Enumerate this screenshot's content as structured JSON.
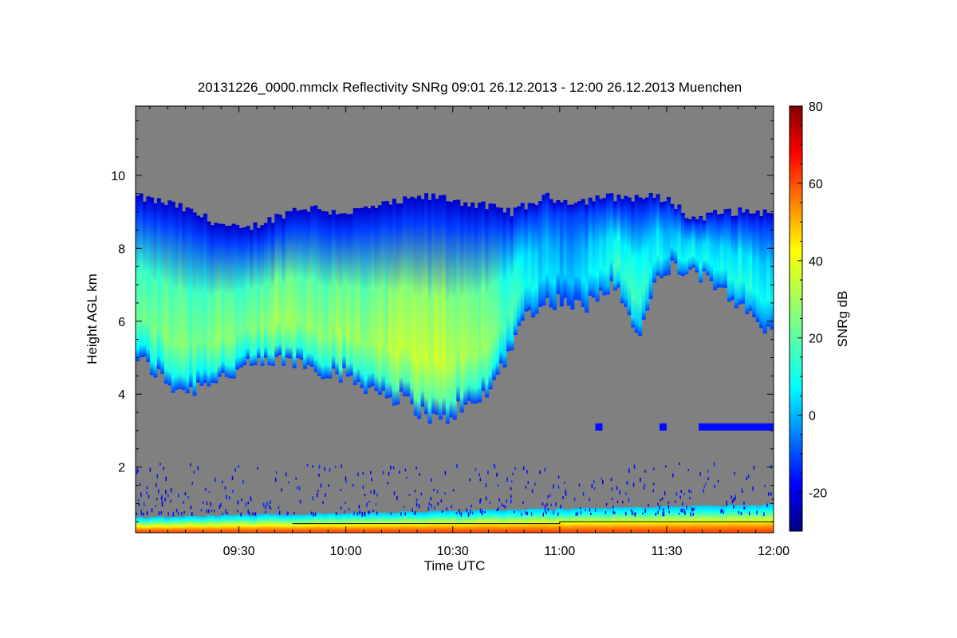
{
  "chart_data": {
    "type": "heatmap",
    "title": "20131226_0000.mmclx Reflectivity SNRg   09:01 26.12.2013 - 12:00 26.12.2013 Muenchen",
    "xlabel": "Time UTC",
    "ylabel": "Height AGL km",
    "x_ticks": [
      "09:30",
      "10:00",
      "10:30",
      "11:00",
      "11:30",
      "12:00"
    ],
    "x_tick_minutes": [
      570,
      600,
      630,
      660,
      690,
      720
    ],
    "xlim_minutes": [
      541,
      720
    ],
    "y_ticks": [
      2,
      4,
      6,
      8,
      10
    ],
    "ylim": [
      0.2,
      11.9
    ],
    "colorbar": {
      "label": "SNRg dB",
      "ticks": [
        -20,
        0,
        20,
        40,
        60,
        80
      ],
      "range": [
        -30,
        80
      ],
      "colormap": "jet"
    },
    "background_color": "#808080",
    "cloud_layer": {
      "description": "upper cloud, SNRg dB per time step",
      "times_minutes": [
        541,
        546,
        551,
        556,
        561,
        566,
        571,
        576,
        581,
        586,
        591,
        596,
        601,
        606,
        611,
        616,
        621,
        626,
        631,
        636,
        641,
        646,
        651,
        656,
        661,
        666,
        671,
        676,
        681,
        686,
        691,
        696,
        701,
        706,
        711,
        716,
        720
      ],
      "top_km": [
        9.4,
        9.3,
        9.2,
        9.0,
        8.8,
        8.6,
        8.5,
        8.7,
        8.9,
        9.1,
        9.1,
        9.0,
        9.0,
        9.1,
        9.2,
        9.3,
        9.4,
        9.4,
        9.3,
        9.2,
        9.1,
        9.0,
        9.2,
        9.4,
        9.3,
        9.3,
        9.4,
        9.4,
        9.4,
        9.4,
        9.3,
        8.8,
        8.9,
        9.0,
        9.0,
        9.0,
        8.9
      ],
      "base_km": [
        5.0,
        4.6,
        4.2,
        4.1,
        4.4,
        4.5,
        4.7,
        4.8,
        4.9,
        4.9,
        4.7,
        4.6,
        4.4,
        4.2,
        4.0,
        3.8,
        3.5,
        3.2,
        3.6,
        3.7,
        4.3,
        5.4,
        6.3,
        6.5,
        6.6,
        6.3,
        6.9,
        7.0,
        5.5,
        6.9,
        7.5,
        7.3,
        7.1,
        6.9,
        6.3,
        5.9,
        5.5
      ],
      "peak_dB": [
        22,
        24,
        26,
        24,
        25,
        27,
        24,
        26,
        28,
        27,
        25,
        27,
        28,
        28,
        30,
        32,
        31,
        34,
        30,
        29,
        26,
        18,
        12,
        8,
        6,
        10,
        14,
        16,
        18,
        12,
        10,
        12,
        14,
        14,
        15,
        13,
        12
      ]
    },
    "mid_layer": {
      "description": "weak echo near 3 km",
      "segments_minutes": [
        [
          670,
          672
        ],
        [
          688,
          690
        ],
        [
          699,
          720
        ]
      ],
      "height_km": 3.1,
      "dB": -15
    },
    "surface_layer": {
      "description": "near-surface strong echo",
      "height_range_km": [
        0.2,
        1.0
      ],
      "dB_bottom": 60,
      "dB_top": 5
    }
  }
}
